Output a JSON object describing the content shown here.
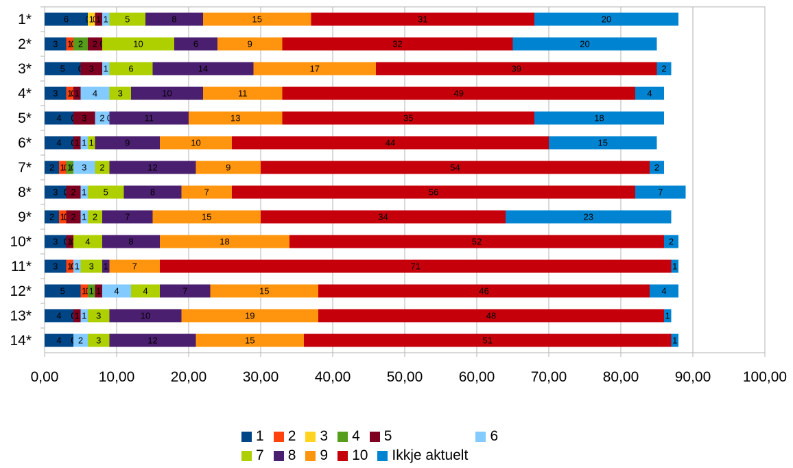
{
  "chart_data": {
    "type": "bar",
    "orientation": "horizontal",
    "stacked": true,
    "categories": [
      "1*",
      "2*",
      "3*",
      "4*",
      "5*",
      "6*",
      "7*",
      "8*",
      "9*",
      "10*",
      "11*",
      "12*",
      "13*",
      "14*"
    ],
    "series": [
      {
        "name": "1",
        "color": "#004586",
        "values": [
          6,
          3,
          5,
          3,
          4,
          4,
          2,
          3,
          2,
          3,
          3,
          5,
          4,
          4
        ]
      },
      {
        "name": "2",
        "color": "#ff420e",
        "values": [
          0,
          1,
          0,
          1,
          0,
          0,
          1,
          0,
          1,
          0,
          1,
          1,
          0,
          0
        ]
      },
      {
        "name": "3",
        "color": "#ffd320",
        "values": [
          1,
          0,
          0,
          0,
          0,
          0,
          0,
          0,
          0,
          0,
          0,
          0,
          0,
          0
        ]
      },
      {
        "name": "4",
        "color": "#579d1c",
        "values": [
          0,
          2,
          0,
          0,
          0,
          0,
          1,
          0,
          0,
          0,
          0,
          1,
          0,
          0
        ]
      },
      {
        "name": "5",
        "color": "#7e0021",
        "values": [
          1,
          2,
          3,
          1,
          3,
          1,
          0,
          2,
          2,
          1,
          0,
          1,
          1,
          0
        ]
      },
      {
        "name": "6",
        "color": "#83caff",
        "values": [
          1,
          0,
          1,
          4,
          2,
          1,
          3,
          1,
          1,
          0,
          1,
          4,
          1,
          2
        ]
      },
      {
        "name": "7",
        "color": "#aecf00",
        "values": [
          5,
          10,
          6,
          3,
          0,
          1,
          2,
          5,
          2,
          4,
          3,
          4,
          3,
          3
        ]
      },
      {
        "name": "8",
        "color": "#4b1f6f",
        "values": [
          8,
          6,
          14,
          10,
          11,
          9,
          12,
          8,
          7,
          8,
          1,
          7,
          10,
          12
        ]
      },
      {
        "name": "9",
        "color": "#ff950e",
        "values": [
          15,
          9,
          17,
          11,
          13,
          10,
          9,
          7,
          15,
          18,
          7,
          15,
          19,
          15
        ]
      },
      {
        "name": "10",
        "color": "#c5000b",
        "values": [
          31,
          32,
          39,
          49,
          35,
          44,
          54,
          56,
          34,
          52,
          71,
          46,
          48,
          51
        ]
      },
      {
        "name": "Ikkje aktuelt",
        "color": "#0084d1",
        "values": [
          20,
          20,
          2,
          4,
          18,
          15,
          2,
          7,
          23,
          2,
          1,
          4,
          1,
          1
        ]
      }
    ],
    "xlim": [
      0,
      100
    ],
    "x_ticks": [
      "0,00",
      "10,00",
      "20,00",
      "30,00",
      "40,00",
      "50,00",
      "60,00",
      "70,00",
      "80,00",
      "90,00",
      "100,00"
    ],
    "grid": true,
    "legend_position": "bottom"
  }
}
